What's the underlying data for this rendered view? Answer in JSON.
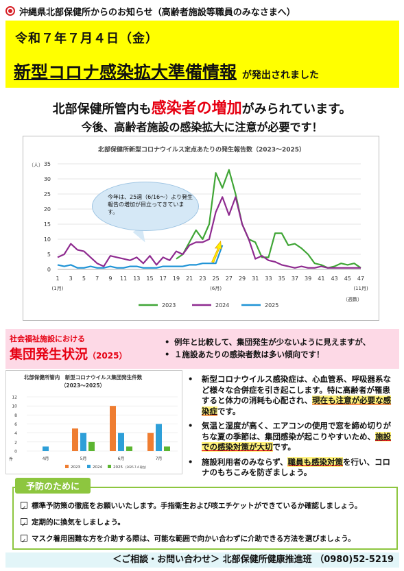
{
  "header": {
    "title": "沖縄県北部保健所からのお知らせ（高齢者施設等職員のみなさまへ）"
  },
  "banner": {
    "date": "令和７年７月４日（金）",
    "headline": "新型コロナ感染拡大準備情報",
    "headline_suffix": "が発出されました"
  },
  "message": {
    "line1_pre": "北部保健所管内も",
    "line1_red": "感染者の増加",
    "line1_post": "がみられています。",
    "line2": "今後、高齢者施設の感染拡大に注意が必要です！"
  },
  "callout": {
    "text": "今年は、25週（6/16～）より発生報告の増加が目立ってきています。"
  },
  "status": {
    "label": "社会福祉施設における",
    "title": "集団発生状況",
    "year": "（2025）",
    "bullets": [
      "例年と比較して、集団発生が少ないように見えますが、",
      "１施設あたりの感染者数は多い傾向です！"
    ]
  },
  "info": {
    "b1_a": "新型コロナウイルス感染症は、心血管系、呼吸器系など様々な合併症を引き起こします。特に高齢者が罹患すると体力の消耗も心配され、",
    "b1_h": "現在も注意が必要な感染症",
    "b1_c": "です。",
    "b2_a": "気温と湿度が高く、エアコンの使用で窓を締め切りがちな夏の季節は、集団感染が起こりやすいため、",
    "b2_h": "施設での感染対策が大切",
    "b2_c": "です。",
    "b3_a": "施設利用者のみならず、",
    "b3_h": "職員も感染対策",
    "b3_c": "を行い、コロナのもちこみを防ぎましょう。"
  },
  "prevention": {
    "tab": "予防のために",
    "items": [
      "標準予防策の徹底をお願いいたします。手指衛生および咳エチケットができているか確認しましょう。",
      "定期的に換気をしましょう。",
      "マスク着用困難な方を介助する際は、可能な範囲で向かい合わずに介助できる方法を選びましょう。"
    ]
  },
  "footer": {
    "text": "＜ご相談・お問い合わせ＞ 北部保健所健康推進班 （0980)52-5219"
  },
  "colors": {
    "s2023": "#3fa535",
    "s2024": "#8e2a8f",
    "s2025": "#1e93d6",
    "bar2023": "#ef7d31",
    "bar2024": "#2e9fd8",
    "bar2025": "#5cb531"
  },
  "chart_data": [
    {
      "type": "line",
      "title": "北部保健所新型コロナウイルス定点あたりの発生報告数（2023～2025）",
      "ylabel": "（人）",
      "xlabel": "（週数）",
      "ylim": [
        0,
        35
      ],
      "yticks": [
        0,
        5,
        10,
        15,
        20,
        25,
        30,
        35
      ],
      "xticks": [
        1,
        3,
        5,
        7,
        9,
        11,
        13,
        15,
        17,
        19,
        21,
        23,
        25,
        27,
        29,
        31,
        33,
        35,
        37,
        39,
        41,
        43,
        45,
        47
      ],
      "xtick_notes": [
        {
          "week": 1,
          "text": "(1月)"
        },
        {
          "week": 25,
          "text": "(6月)"
        },
        {
          "week": 47,
          "text": "(11月)"
        }
      ],
      "legend": "bottom",
      "series": [
        {
          "name": "2023",
          "x": [
            19,
            20,
            21,
            22,
            23,
            24,
            25,
            26,
            27,
            28,
            29,
            30,
            31,
            32,
            33,
            34,
            35,
            36,
            37,
            38,
            39,
            40,
            41,
            42,
            43,
            44,
            45,
            46,
            47
          ],
          "values": [
            3.5,
            5,
            9,
            13,
            10,
            15,
            32,
            27,
            33,
            25,
            15,
            10,
            9,
            4,
            4,
            12,
            12,
            8,
            8.5,
            7,
            5,
            2,
            1.5,
            0.5,
            1,
            2,
            1.5,
            2,
            0.5
          ]
        },
        {
          "name": "2024",
          "x": [
            1,
            2,
            3,
            4,
            5,
            6,
            7,
            8,
            9,
            10,
            11,
            12,
            13,
            14,
            15,
            16,
            17,
            18,
            19,
            20,
            21,
            22,
            23,
            24,
            25,
            26,
            27,
            28,
            29,
            30,
            31,
            32,
            33,
            34,
            35,
            36,
            37,
            38,
            39,
            40,
            41,
            42,
            43,
            44,
            45,
            46,
            47
          ],
          "values": [
            4,
            5,
            8.5,
            6.5,
            6,
            4,
            2,
            1,
            4.5,
            4,
            3.5,
            3,
            4,
            2,
            4.5,
            1.5,
            4,
            3,
            6,
            5,
            8,
            9,
            9,
            10,
            19,
            24,
            18,
            24,
            15,
            10,
            3.5,
            4.5,
            3,
            2.5,
            1.5,
            1,
            0.5,
            1,
            0.5,
            0.5,
            1,
            0.5,
            0.5,
            0.5,
            0.5,
            0.5,
            0.5
          ]
        },
        {
          "name": "2025",
          "x": [
            1,
            2,
            3,
            4,
            5,
            6,
            7,
            8,
            9,
            10,
            11,
            12,
            13,
            14,
            15,
            16,
            17,
            18,
            19,
            20,
            21,
            22,
            23,
            24,
            25,
            26
          ],
          "values": [
            1.5,
            1,
            1.5,
            0.5,
            0.5,
            1,
            0.5,
            0.5,
            1,
            0.5,
            0.5,
            1,
            1,
            0.5,
            0.5,
            0.5,
            1,
            1,
            1,
            1,
            1.5,
            1.5,
            2,
            2,
            2,
            8
          ]
        }
      ]
    },
    {
      "type": "bar",
      "title": "北部保健所管内　新型コロナウイルス集団発生件数",
      "subtitle": "（2023～2025）",
      "ylabel": "件",
      "categories": [
        "4月",
        "5月",
        "6月",
        "7月"
      ],
      "ylim": [
        0,
        12
      ],
      "yticks": [
        0,
        2,
        4,
        6,
        8,
        10,
        12
      ],
      "legend": "bottom",
      "legend_note": "(2025.7.4 現在)",
      "series": [
        {
          "name": "2023",
          "values": [
            0,
            5,
            10,
            4
          ]
        },
        {
          "name": "2024",
          "values": [
            1,
            4,
            4,
            6
          ]
        },
        {
          "name": "2025",
          "values": [
            0,
            2,
            1,
            1
          ]
        }
      ]
    }
  ]
}
